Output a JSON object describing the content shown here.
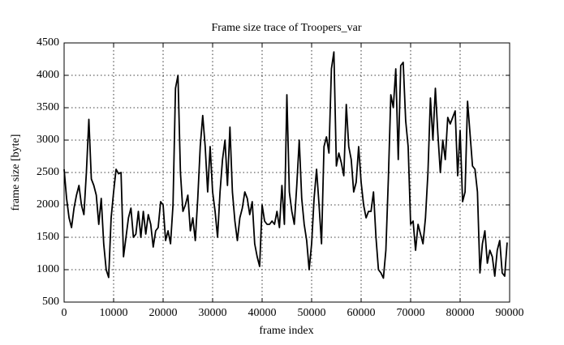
{
  "chart_data": {
    "type": "line",
    "title": "Frame size trace of Troopers_var",
    "xlabel": "frame index",
    "ylabel": "frame size [byte]",
    "xlim": [
      0,
      90000
    ],
    "xticks": [
      0,
      10000,
      20000,
      30000,
      40000,
      50000,
      60000,
      70000,
      80000,
      90000
    ],
    "ylim": [
      500,
      4500
    ],
    "yticks": [
      500,
      1000,
      1500,
      2000,
      2500,
      3000,
      3500,
      4000,
      4500
    ],
    "grid": true,
    "series": [
      {
        "color": "#000000",
        "x": [
          0,
          500,
          1000,
          1500,
          2000,
          2500,
          3000,
          3500,
          4000,
          4500,
          5000,
          5500,
          6000,
          6500,
          7000,
          7500,
          8000,
          8500,
          9000,
          9500,
          10000,
          10500,
          11000,
          11500,
          12000,
          12500,
          13000,
          13500,
          14000,
          14500,
          15000,
          15500,
          16000,
          16500,
          17000,
          17500,
          18000,
          18500,
          19000,
          19500,
          20000,
          20500,
          21000,
          21500,
          22000,
          22500,
          23000,
          23500,
          24000,
          24500,
          25000,
          25500,
          26000,
          26500,
          27000,
          27500,
          28000,
          28500,
          29000,
          29500,
          30000,
          30500,
          31000,
          31500,
          32000,
          32500,
          33000,
          33500,
          34000,
          34500,
          35000,
          35500,
          36000,
          36500,
          37000,
          37500,
          38000,
          38500,
          39000,
          39500,
          40000,
          40500,
          41000,
          41500,
          42000,
          42500,
          43000,
          43500,
          44000,
          44500,
          45000,
          45500,
          46000,
          46500,
          47000,
          47500,
          48000,
          48500,
          49000,
          49500,
          50000,
          50500,
          51000,
          51500,
          52000,
          52500,
          53000,
          53500,
          54000,
          54500,
          55000,
          55500,
          56000,
          56500,
          57000,
          57500,
          58000,
          58500,
          59000,
          59500,
          60000,
          60500,
          61000,
          61500,
          62000,
          62500,
          63000,
          63500,
          64000,
          64500,
          65000,
          65500,
          66000,
          66500,
          67000,
          67500,
          68000,
          68500,
          69000,
          69500,
          70000,
          70500,
          71000,
          71500,
          72000,
          72500,
          73000,
          73500,
          74000,
          74500,
          75000,
          75500,
          76000,
          76500,
          77000,
          77500,
          78000,
          78500,
          79000,
          79500,
          80000,
          80500,
          81000,
          81500,
          82000,
          82500,
          83000,
          83500,
          84000,
          84500,
          85000,
          85500,
          86000,
          86500,
          87000,
          87500,
          88000,
          88500,
          89000,
          89500
        ],
        "values": [
          2550,
          2100,
          1800,
          1650,
          1950,
          2150,
          2300,
          2000,
          1850,
          2500,
          3320,
          2400,
          2300,
          2150,
          1700,
          2100,
          1400,
          1000,
          880,
          1800,
          2200,
          2550,
          2480,
          2500,
          1200,
          1500,
          1800,
          1950,
          1500,
          1550,
          1900,
          1500,
          1900,
          1550,
          1850,
          1700,
          1350,
          1600,
          1650,
          2050,
          2000,
          1450,
          1600,
          1400,
          2000,
          3800,
          4000,
          2500,
          1900,
          2000,
          2150,
          1600,
          1800,
          1450,
          2100,
          2900,
          3380,
          2900,
          2200,
          2900,
          2200,
          1900,
          1500,
          2200,
          2700,
          3000,
          2300,
          3200,
          2200,
          1750,
          1450,
          1800,
          1950,
          2200,
          2100,
          1850,
          2050,
          1400,
          1200,
          1050,
          2000,
          1750,
          1700,
          1700,
          1750,
          1700,
          1900,
          1650,
          2300,
          1700,
          3700,
          2200,
          1900,
          1700,
          2300,
          3000,
          2100,
          1700,
          1450,
          1000,
          1400,
          2100,
          2550,
          2000,
          1400,
          2900,
          3050,
          2800,
          4100,
          4360,
          2600,
          2800,
          2650,
          2450,
          3550,
          2900,
          2700,
          2200,
          2350,
          2900,
          2350,
          2000,
          1800,
          1900,
          1900,
          2200,
          1500,
          1000,
          950,
          870,
          1300,
          2400,
          3700,
          3500,
          4100,
          2700,
          4150,
          4200,
          3300,
          2900,
          1700,
          1750,
          1300,
          1700,
          1550,
          1400,
          1800,
          2500,
          3650,
          3000,
          3800,
          3100,
          2500,
          3000,
          2700,
          3350,
          3250,
          3350,
          3450,
          2450,
          3150,
          2050,
          2200,
          3600,
          3100,
          2600,
          2550,
          2200,
          950,
          1400,
          1600,
          1100,
          1300,
          1200,
          900,
          1300,
          1450,
          950,
          900,
          1420
        ]
      }
    ]
  }
}
